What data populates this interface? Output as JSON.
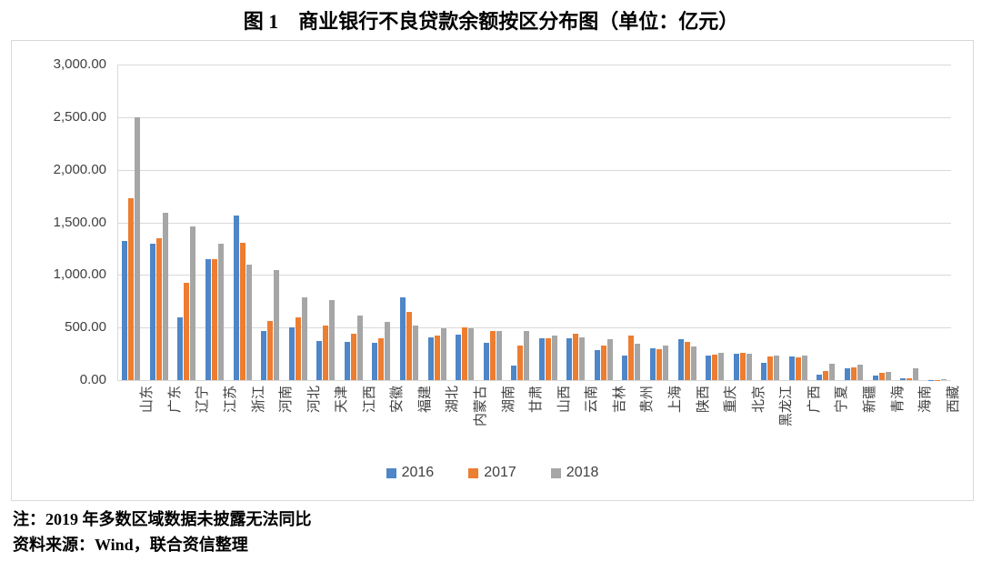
{
  "page": {
    "title": "图 1　商业银行不良贷款余额按区分布图（单位：亿元）"
  },
  "notes": {
    "note1": "注：2019 年多数区域数据未披露无法同比",
    "source": "资料来源：Wind，联合资信整理"
  },
  "colors": {
    "series_2016": "#4E86C8",
    "series_2017": "#ED7D31",
    "series_2018": "#A6A6A6",
    "gridline": "#D9D9D9",
    "frame_border": "#D9D9D9",
    "axis_text": "#404040"
  },
  "chart_data": {
    "type": "bar",
    "title": "图 1　商业银行不良贷款余额按区分布图（单位：亿元）",
    "unit": "亿元",
    "categories": [
      "山东",
      "广东",
      "辽宁",
      "江苏",
      "浙江",
      "河南",
      "河北",
      "天津",
      "江西",
      "安徽",
      "福建",
      "湖北",
      "内蒙古",
      "湖南",
      "甘肃",
      "山西",
      "云南",
      "吉林",
      "贵州",
      "上海",
      "陕西",
      "重庆",
      "北京",
      "黑龙江",
      "广西",
      "宁夏",
      "新疆",
      "青海",
      "海南",
      "西藏"
    ],
    "series": [
      {
        "name": "2016",
        "color": "#4E86C8",
        "values": [
          1320,
          1300,
          600,
          1150,
          1565,
          470,
          500,
          370,
          360,
          355,
          785,
          410,
          430,
          355,
          140,
          400,
          400,
          285,
          235,
          305,
          385,
          235,
          250,
          165,
          225,
          50,
          115,
          45,
          15,
          2
        ]
      },
      {
        "name": "2017",
        "color": "#ED7D31",
        "values": [
          1725,
          1350,
          925,
          1150,
          1305,
          560,
          600,
          520,
          440,
          400,
          645,
          425,
          500,
          465,
          330,
          395,
          445,
          330,
          420,
          290,
          360,
          245,
          260,
          225,
          215,
          90,
          125,
          65,
          15,
          2
        ]
      },
      {
        "name": "2018",
        "color": "#A6A6A6",
        "values": [
          2500,
          1590,
          1465,
          1300,
          1095,
          1045,
          785,
          760,
          615,
          555,
          520,
          495,
          490,
          470,
          465,
          420,
          410,
          385,
          350,
          325,
          320,
          260,
          250,
          235,
          235,
          155,
          145,
          80,
          110,
          5
        ]
      }
    ],
    "ylim": [
      0,
      3000
    ],
    "ytick_step": 500,
    "ytick_labels": [
      "0.00",
      "500.00",
      "1,000.00",
      "1,500.00",
      "2,000.00",
      "2,500.00",
      "3,000.00"
    ],
    "grid": true,
    "legend_position": "bottom",
    "xlabel_rotation": -90
  }
}
